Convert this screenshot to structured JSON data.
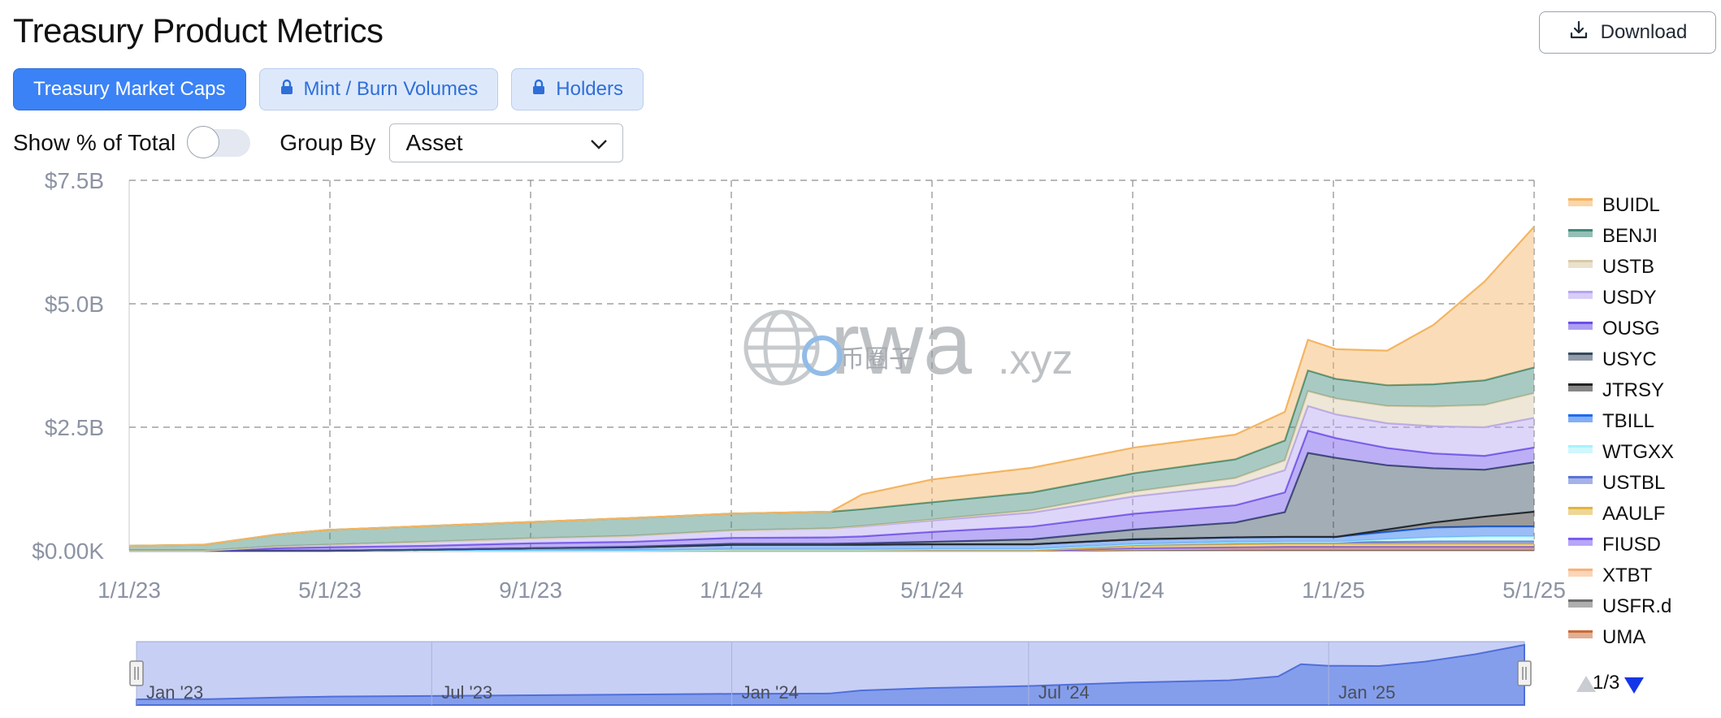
{
  "header": {
    "title": "Treasury Product Metrics",
    "download_label": "Download"
  },
  "tabs": [
    {
      "label": "Treasury Market Caps",
      "active": true,
      "locked": false
    },
    {
      "label": "Mint / Burn Volumes",
      "active": false,
      "locked": true
    },
    {
      "label": "Holders",
      "active": false,
      "locked": true
    }
  ],
  "controls": {
    "show_pct_label": "Show % of Total",
    "show_pct_on": false,
    "group_by_label": "Group By",
    "group_by_value": "Asset"
  },
  "watermark": {
    "main": "rwa",
    "suffix": ".xyz",
    "overlay": "币圈子"
  },
  "legend_pager": {
    "label": "1/3"
  },
  "navigator": {
    "labels": [
      "Jan '23",
      "Jul '23",
      "Jan '24",
      "Jul '24",
      "Jan '25"
    ]
  },
  "chart_data": {
    "type": "area",
    "stacked": true,
    "grid": true,
    "legend_position": "right",
    "y_ticks": [
      "$0.00K",
      "$2.5B",
      "$5.0B",
      "$7.5B"
    ],
    "ylim_billions": [
      0,
      7.5
    ],
    "x_ticks": [
      "1/1/23",
      "5/1/23",
      "9/1/23",
      "1/1/24",
      "5/1/24",
      "9/1/24",
      "1/1/25",
      "5/1/25"
    ],
    "x_dates": [
      "2023-01-01",
      "2023-02-15",
      "2023-04-01",
      "2023-05-01",
      "2023-07-01",
      "2023-09-01",
      "2023-11-01",
      "2024-01-01",
      "2024-03-01",
      "2024-03-20",
      "2024-05-01",
      "2024-07-01",
      "2024-09-01",
      "2024-11-01",
      "2024-12-01",
      "2024-12-15",
      "2025-01-01",
      "2025-02-01",
      "2025-03-01",
      "2025-04-01",
      "2025-05-01"
    ],
    "unit": "billion USD",
    "series": [
      {
        "name": "BUIDL",
        "color": "#f5b461",
        "values": [
          0,
          0,
          0,
          0,
          0,
          0,
          0,
          0,
          0,
          0.3,
          0.46,
          0.5,
          0.52,
          0.5,
          0.58,
          0.62,
          0.6,
          0.7,
          1.2,
          2.0,
          2.85
        ]
      },
      {
        "name": "BENJI",
        "color": "#3e8a78",
        "values": [
          0.1,
          0.12,
          0.24,
          0.3,
          0.32,
          0.33,
          0.36,
          0.34,
          0.34,
          0.34,
          0.35,
          0.36,
          0.37,
          0.38,
          0.4,
          0.42,
          0.4,
          0.42,
          0.45,
          0.5,
          0.52
        ]
      },
      {
        "name": "USTB",
        "color": "#d9c9a6",
        "values": [
          0,
          0,
          0,
          0,
          0,
          0,
          0,
          0,
          0,
          0.01,
          0.02,
          0.05,
          0.1,
          0.15,
          0.2,
          0.3,
          0.32,
          0.35,
          0.4,
          0.45,
          0.5
        ]
      },
      {
        "name": "USDY",
        "color": "#b6a4f2",
        "values": [
          0,
          0,
          0.04,
          0.05,
          0.08,
          0.1,
          0.12,
          0.15,
          0.18,
          0.2,
          0.23,
          0.28,
          0.35,
          0.4,
          0.45,
          0.5,
          0.48,
          0.5,
          0.55,
          0.58,
          0.6
        ]
      },
      {
        "name": "OUSG",
        "color": "#6c4ee8",
        "values": [
          0,
          0,
          0.05,
          0.07,
          0.08,
          0.1,
          0.1,
          0.12,
          0.13,
          0.14,
          0.2,
          0.26,
          0.32,
          0.35,
          0.4,
          0.45,
          0.4,
          0.35,
          0.3,
          0.28,
          0.3
        ]
      },
      {
        "name": "USYC",
        "color": "#34495e",
        "values": [
          0,
          0,
          0,
          0,
          0,
          0,
          0.01,
          0.02,
          0.02,
          0.03,
          0.05,
          0.1,
          0.2,
          0.3,
          0.5,
          1.7,
          1.6,
          1.3,
          1.1,
          0.95,
          1.0
        ]
      },
      {
        "name": "JTRSY",
        "color": "#222222",
        "values": [
          0,
          0,
          0,
          0,
          0,
          0,
          0,
          0,
          0,
          0,
          0,
          0,
          0,
          0,
          0,
          0,
          0,
          0.05,
          0.1,
          0.2,
          0.3
        ]
      },
      {
        "name": "TBILL",
        "color": "#1e6cf0",
        "values": [
          0,
          0,
          0,
          0,
          0.02,
          0.05,
          0.07,
          0.1,
          0.1,
          0.1,
          0.1,
          0.1,
          0.1,
          0.1,
          0.1,
          0.1,
          0.1,
          0.15,
          0.2,
          0.2,
          0.2
        ]
      },
      {
        "name": "WTGXX",
        "color": "#a5f3fc",
        "values": [
          0,
          0,
          0,
          0,
          0,
          0,
          0,
          0,
          0,
          0,
          0,
          0,
          0,
          0,
          0,
          0,
          0,
          0.05,
          0.08,
          0.1,
          0.1
        ]
      },
      {
        "name": "USTBL",
        "color": "#5b73d6",
        "values": [
          0,
          0,
          0,
          0,
          0,
          0,
          0,
          0.02,
          0.02,
          0.02,
          0.03,
          0.03,
          0.03,
          0.04,
          0.04,
          0.04,
          0.04,
          0.04,
          0.05,
          0.05,
          0.05
        ]
      },
      {
        "name": "AAULF",
        "color": "#e2b53c",
        "values": [
          0,
          0,
          0,
          0,
          0,
          0,
          0,
          0,
          0,
          0,
          0,
          0,
          0.05,
          0.06,
          0.06,
          0.06,
          0.06,
          0.06,
          0.06,
          0.06,
          0.06
        ]
      },
      {
        "name": "FIUSD",
        "color": "#7b5cf0",
        "values": [
          0,
          0,
          0,
          0,
          0,
          0,
          0,
          0,
          0,
          0,
          0,
          0,
          0.02,
          0.03,
          0.04,
          0.04,
          0.04,
          0.04,
          0.04,
          0.04,
          0.04
        ]
      },
      {
        "name": "XTBT",
        "color": "#f7b27c",
        "values": [
          0,
          0,
          0,
          0,
          0,
          0,
          0,
          0,
          0,
          0,
          0,
          0,
          0.02,
          0.02,
          0.02,
          0.02,
          0.02,
          0.02,
          0.02,
          0.02,
          0.02
        ]
      },
      {
        "name": "USFR.d",
        "color": "#6b6b6b",
        "values": [
          0,
          0,
          0,
          0,
          0,
          0,
          0,
          0,
          0,
          0,
          0,
          0,
          0,
          0.01,
          0.01,
          0.01,
          0.01,
          0.01,
          0.01,
          0.01,
          0.01
        ]
      },
      {
        "name": "UMA",
        "color": "#c96b3a",
        "values": [
          0,
          0,
          0,
          0,
          0,
          0,
          0,
          0,
          0,
          0,
          0,
          0,
          0.01,
          0.01,
          0.01,
          0.01,
          0.01,
          0.01,
          0.01,
          0.01,
          0.01
        ]
      }
    ]
  }
}
